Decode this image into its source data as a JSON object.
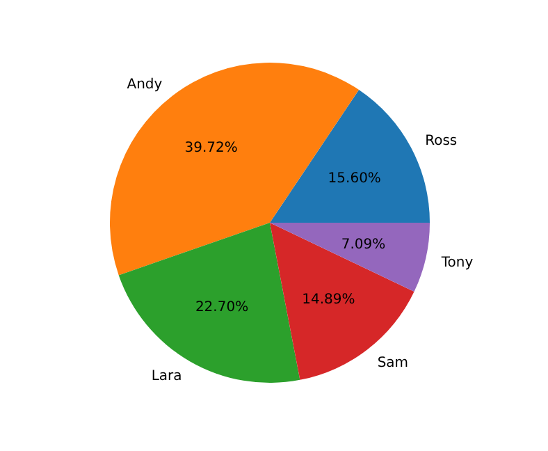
{
  "chart_data": {
    "type": "pie",
    "categories": [
      "Ross",
      "Andy",
      "Lara",
      "Sam",
      "Tony"
    ],
    "values": [
      15.6,
      39.72,
      22.7,
      14.89,
      7.09
    ],
    "colors": [
      "#1f77b4",
      "#ff7f0e",
      "#2ca02c",
      "#d62728",
      "#9467bd"
    ],
    "value_labels": [
      "15.60%",
      "39.72%",
      "22.70%",
      "14.89%",
      "7.09%"
    ]
  }
}
